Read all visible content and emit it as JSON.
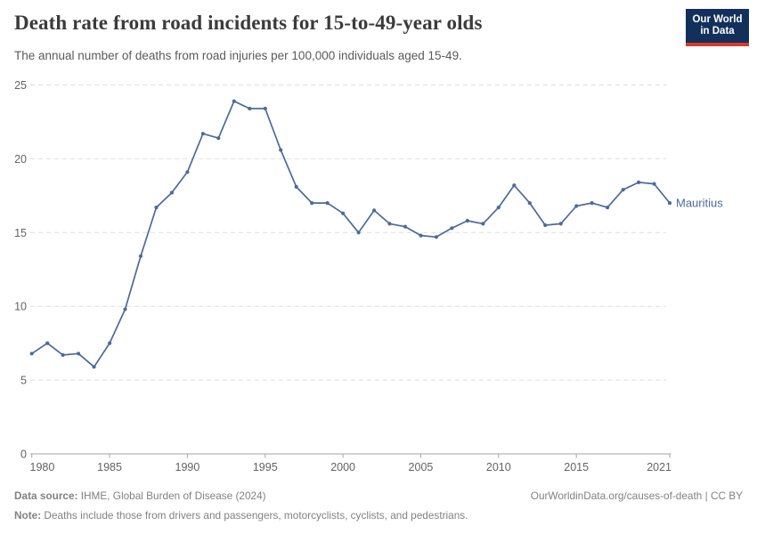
{
  "header": {
    "title": "Death rate from road incidents for 15-to-49-year olds",
    "subtitle": "The annual number of deaths from road injuries per 100,000 individuals aged 15-49."
  },
  "logo": {
    "line1": "Our World",
    "line2": "in Data"
  },
  "colors": {
    "series_blue": "#4c6a9c",
    "logo_navy": "#12305b",
    "logo_red": "#d93a2b",
    "gridline": "#dedede",
    "axis_line": "#a6a6a6",
    "tick_label": "#636363",
    "footer_text": "#828282"
  },
  "chart_data": {
    "type": "line",
    "title": "Death rate from road incidents for 15-to-49-year olds",
    "x": [
      1980,
      1981,
      1982,
      1983,
      1984,
      1985,
      1986,
      1987,
      1988,
      1989,
      1990,
      1991,
      1992,
      1993,
      1994,
      1995,
      1996,
      1997,
      1998,
      1999,
      2000,
      2001,
      2002,
      2003,
      2004,
      2005,
      2006,
      2007,
      2008,
      2009,
      2010,
      2011,
      2012,
      2013,
      2014,
      2015,
      2016,
      2017,
      2018,
      2019,
      2020,
      2021
    ],
    "series": [
      {
        "name": "Mauritius",
        "color": "#4c6a9c",
        "values": [
          6.8,
          7.5,
          6.7,
          6.8,
          5.9,
          7.5,
          9.8,
          13.4,
          16.7,
          17.7,
          19.1,
          21.7,
          21.4,
          23.9,
          23.4,
          23.4,
          20.6,
          18.1,
          17.0,
          17.0,
          16.3,
          15.0,
          16.5,
          15.6,
          15.4,
          14.8,
          14.7,
          15.3,
          15.8,
          15.6,
          16.7,
          18.2,
          17.0,
          15.5,
          15.6,
          16.8,
          17.0,
          16.7,
          17.9,
          18.4,
          18.3,
          17.0
        ]
      }
    ],
    "xlim": [
      1980,
      2021
    ],
    "ylim": [
      0,
      25
    ],
    "x_ticks": [
      1980,
      1985,
      1990,
      1995,
      2000,
      2005,
      2010,
      2015,
      2021
    ],
    "y_ticks": [
      0,
      5,
      10,
      15,
      20,
      25
    ],
    "grid": "horizontal-dashed",
    "legend": "line-end-label"
  },
  "footer": {
    "source_label": "Data source:",
    "source": " IHME, Global Burden of Disease (2024)",
    "credit": "OurWorldinData.org/causes-of-death | CC BY",
    "note_label": "Note:",
    "note": " Deaths include those from drivers and passengers, motorcyclists, cyclists, and pedestrians."
  }
}
